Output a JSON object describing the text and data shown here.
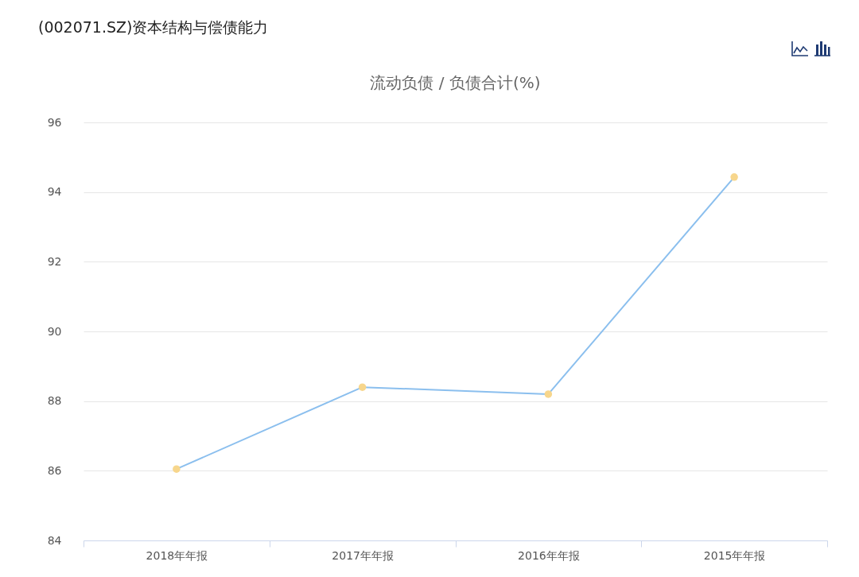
{
  "chart_data": {
    "type": "line",
    "title": "(002071.SZ)资本结构与偿债能力",
    "subtitle": "流动负债 / 负债合计(%)",
    "categories": [
      "2018年年报",
      "2017年年报",
      "2016年年报",
      "2015年年报"
    ],
    "series": [
      {
        "color": "#8bbfee",
        "colors": [
          "#f7d68c",
          "#f7d68c",
          "#f7d68c",
          "#f7d68c"
        ],
        "values": [
          86.05,
          88.4,
          88.2,
          94.43
        ]
      }
    ],
    "marker": "circle",
    "ylim": [
      84,
      96
    ],
    "yticks": [
      84,
      86,
      88,
      90,
      92,
      94,
      96
    ],
    "grid": "y"
  }
}
